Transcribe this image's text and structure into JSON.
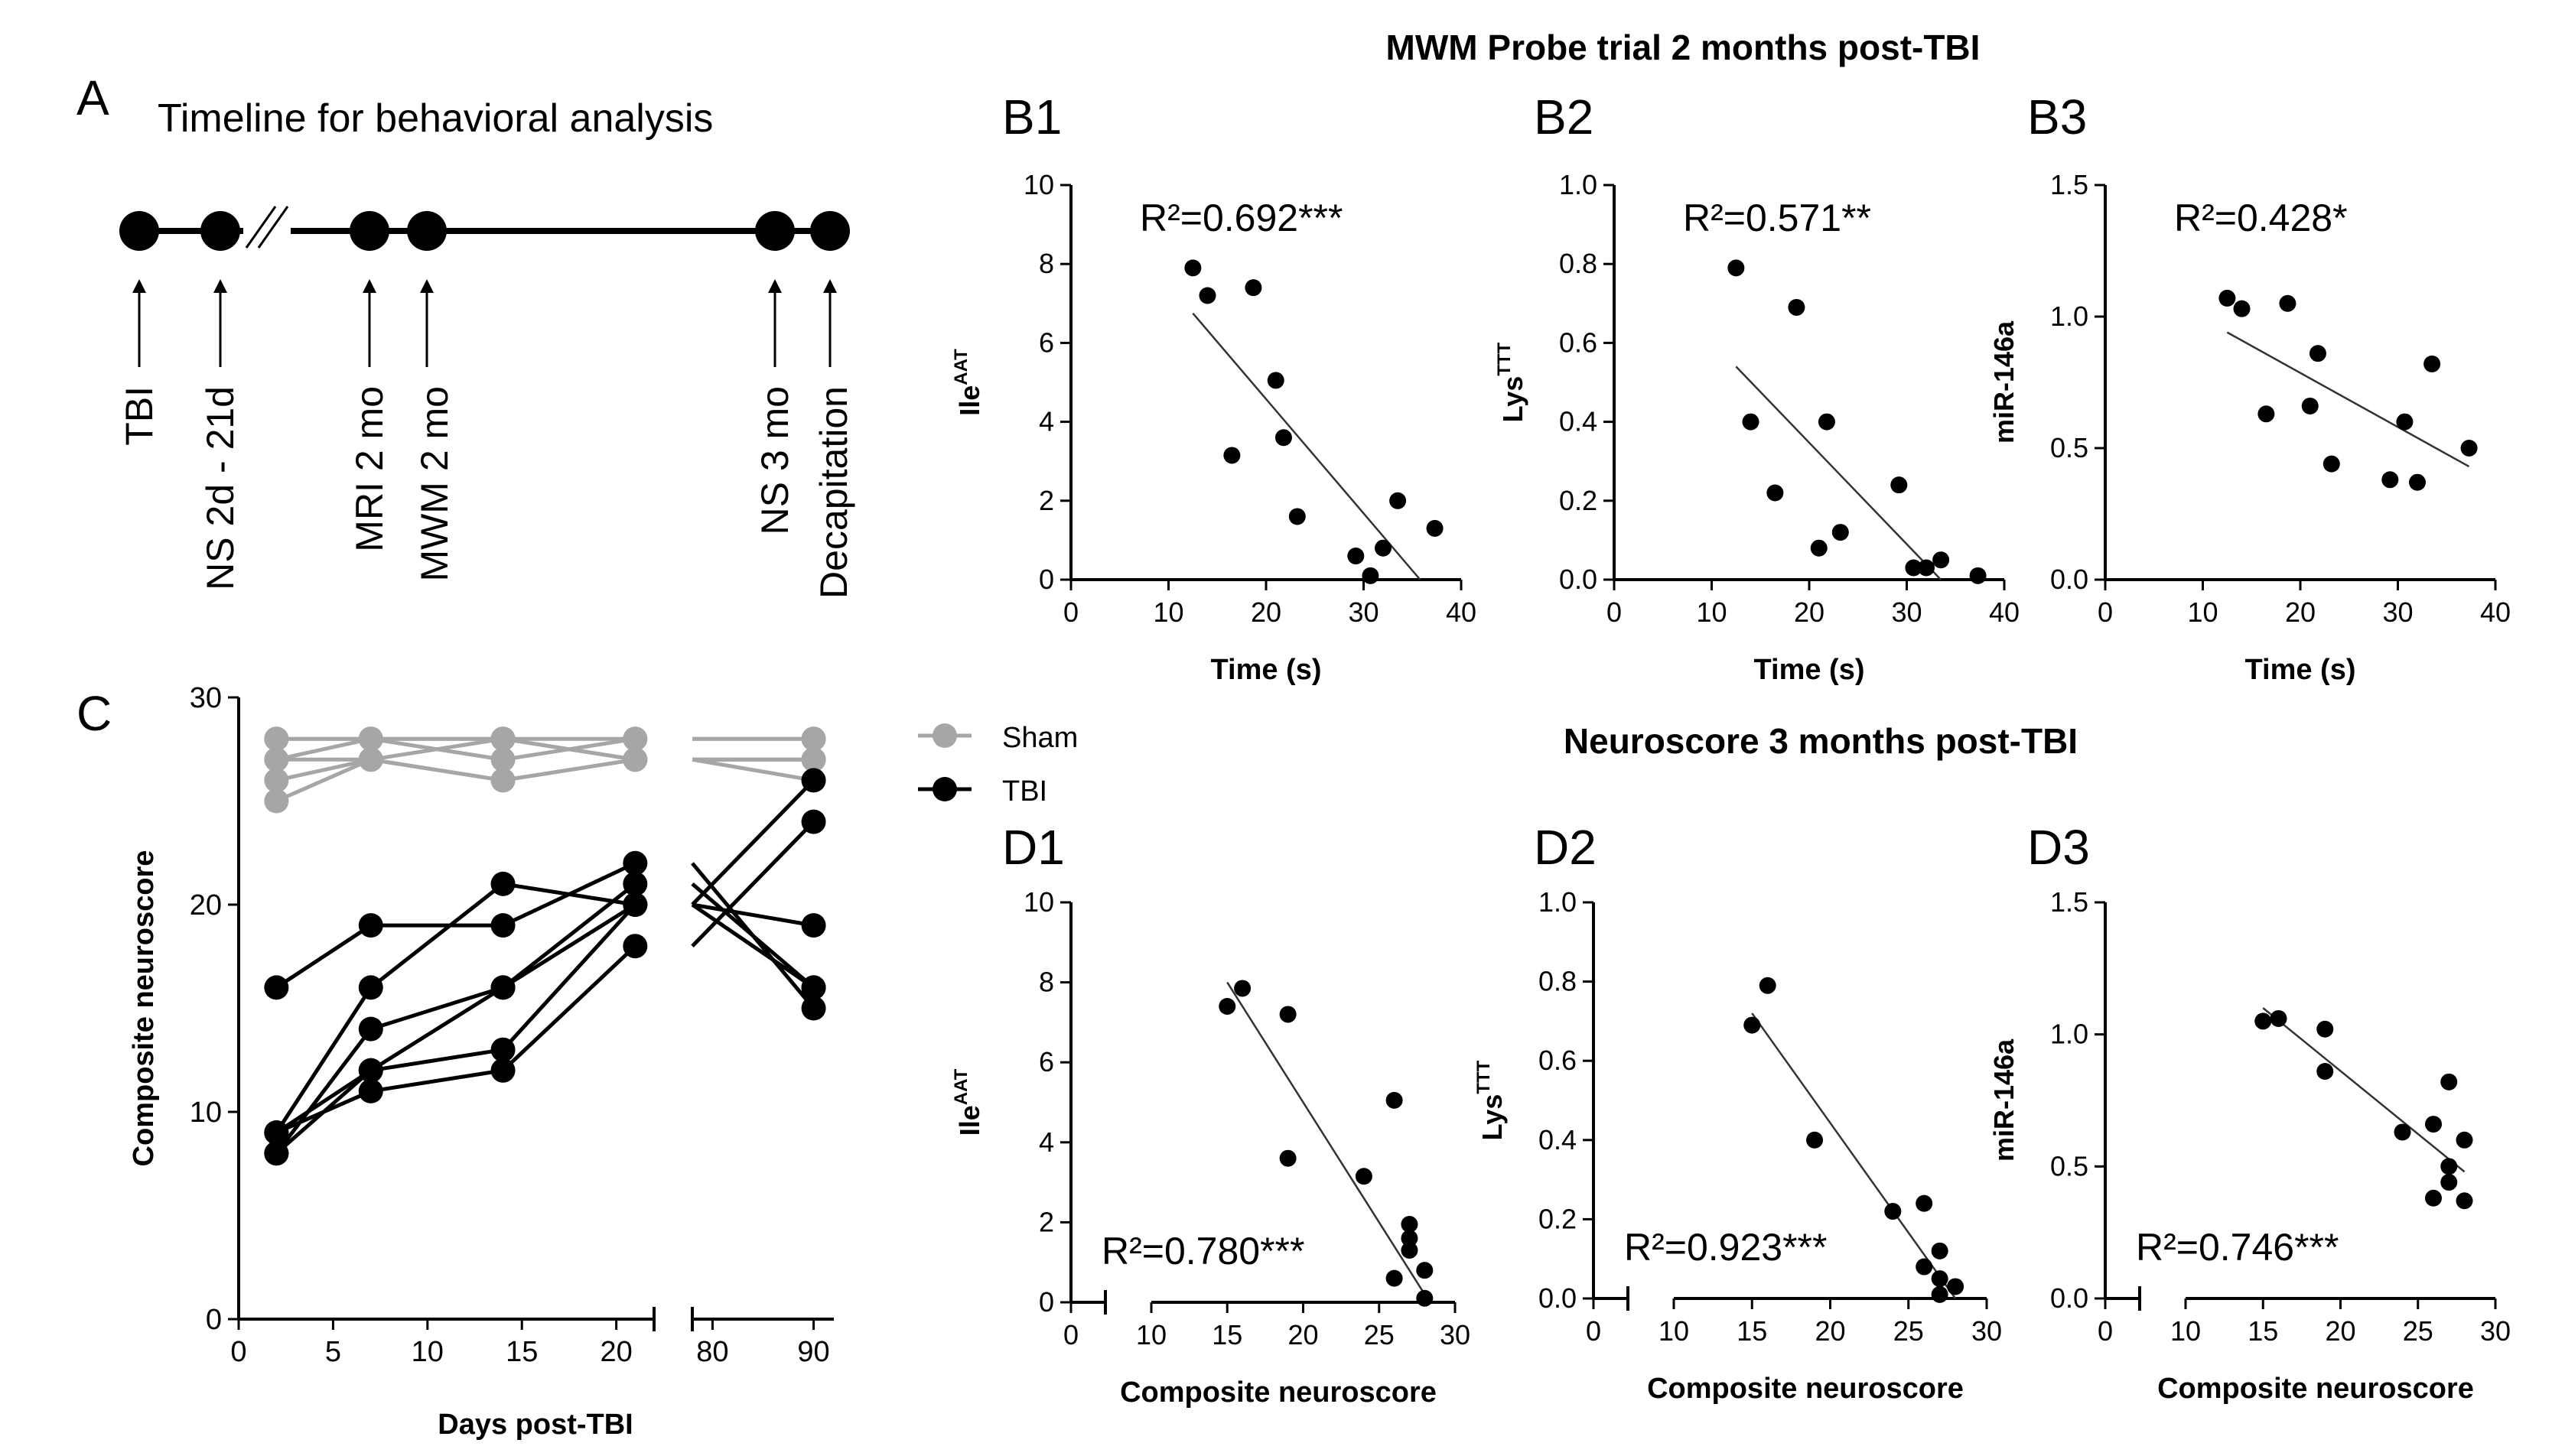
{
  "figure": {
    "panel_labels": {
      "A": "A",
      "B1": "B1",
      "B2": "B2",
      "B3": "B3",
      "C": "C",
      "D1": "D1",
      "D2": "D2",
      "D3": "D3"
    },
    "mwm_title": "MWM Probe trial 2 months post-TBI",
    "neuro_title": "Neuroscore 3 months post-TBI"
  },
  "timeline": {
    "title": "Timeline for behavioral analysis",
    "break_mark": "//",
    "events": [
      "TBI",
      "NS 2d - 21d",
      "MRI 2 mo",
      "MWM 2 mo",
      "NS 3 mo",
      "Decapitation"
    ]
  },
  "chart_data": [
    {
      "id": "C",
      "type": "line",
      "xlabel": "Days post-TBI",
      "ylabel": "Composite neuroscore",
      "xticks": [
        "0",
        "5",
        "10",
        "15",
        "20",
        "80",
        "90"
      ],
      "yticks": [
        "0",
        "10",
        "20",
        "30"
      ],
      "ylim": [
        0,
        30
      ],
      "x": [
        2,
        7,
        14,
        21,
        90
      ],
      "legend": [
        "Sham",
        "TBI"
      ],
      "colors": {
        "Sham": "#a6a6a6",
        "TBI": "#000000"
      },
      "series": [
        {
          "name": "Sham",
          "values": [
            28,
            28,
            28,
            28,
            28
          ]
        },
        {
          "name": "Sham",
          "values": [
            27,
            28,
            27,
            28,
            28
          ]
        },
        {
          "name": "Sham",
          "values": [
            26,
            27,
            26,
            27,
            27
          ]
        },
        {
          "name": "Sham",
          "values": [
            25,
            27,
            26,
            27,
            26
          ]
        },
        {
          "name": "Sham",
          "values": [
            27,
            27,
            28,
            27,
            27
          ]
        },
        {
          "name": "Sham",
          "values": [
            28,
            28,
            28,
            27,
            27
          ]
        },
        {
          "name": "TBI",
          "values": [
            16,
            19,
            19,
            22,
            15
          ]
        },
        {
          "name": "TBI",
          "values": [
            9,
            16,
            21,
            20,
            19
          ]
        },
        {
          "name": "TBI",
          "values": [
            8,
            14,
            16,
            21,
            16
          ]
        },
        {
          "name": "TBI",
          "values": [
            9,
            12,
            16,
            20,
            16
          ]
        },
        {
          "name": "TBI",
          "values": [
            8,
            12,
            13,
            20,
            26
          ]
        },
        {
          "name": "TBI",
          "values": [
            9,
            11,
            12,
            18,
            24
          ]
        }
      ]
    },
    {
      "id": "B1",
      "type": "scatter",
      "xlabel": "Time (s)",
      "ylabel": "Ile",
      "ylabel_sup": "AAT",
      "xlim": [
        0,
        40
      ],
      "ylim": [
        0,
        10
      ],
      "xticks": [
        "0",
        "10",
        "20",
        "30",
        "40"
      ],
      "yticks": [
        "0",
        "2",
        "4",
        "6",
        "8",
        "10"
      ],
      "r2_text": "R²=0.692***",
      "fit": [
        [
          12.5,
          6.75
        ],
        [
          35.8,
          0
        ]
      ],
      "points": [
        [
          12.5,
          7.9
        ],
        [
          14,
          7.2
        ],
        [
          16.5,
          3.15
        ],
        [
          18.7,
          7.4
        ],
        [
          21,
          5.05
        ],
        [
          21.8,
          3.6
        ],
        [
          23.2,
          1.6
        ],
        [
          29.2,
          0.6
        ],
        [
          30.7,
          0.1
        ],
        [
          32,
          0.8
        ],
        [
          33.5,
          2
        ],
        [
          37.3,
          1.3
        ]
      ]
    },
    {
      "id": "B2",
      "type": "scatter",
      "xlabel": "Time (s)",
      "ylabel": "Lys",
      "ylabel_sup": "TTT",
      "xlim": [
        0,
        40
      ],
      "ylim": [
        0,
        1
      ],
      "xticks": [
        "0",
        "10",
        "20",
        "30",
        "40"
      ],
      "yticks": [
        "0.0",
        "0.2",
        "0.4",
        "0.6",
        "0.8",
        "1.0"
      ],
      "r2_text": "R²=0.571**",
      "fit": [
        [
          12.5,
          0.54
        ],
        [
          33.5,
          0
        ]
      ],
      "points": [
        [
          12.5,
          0.79
        ],
        [
          14,
          0.4
        ],
        [
          16.5,
          0.22
        ],
        [
          18.7,
          0.69
        ],
        [
          21,
          0.08
        ],
        [
          21.8,
          0.4
        ],
        [
          23.2,
          0.12
        ],
        [
          29.2,
          0.24
        ],
        [
          30.7,
          0.03
        ],
        [
          32,
          0.03
        ],
        [
          33.5,
          0.05
        ],
        [
          37.3,
          0.01
        ]
      ]
    },
    {
      "id": "B3",
      "type": "scatter",
      "xlabel": "Time (s)",
      "ylabel": "miR-146a",
      "xlim": [
        0,
        40
      ],
      "ylim": [
        0,
        1.5
      ],
      "xticks": [
        "0",
        "10",
        "20",
        "30",
        "40"
      ],
      "yticks": [
        "0.0",
        "0.5",
        "1.0",
        "1.5"
      ],
      "r2_text": "R²=0.428*",
      "fit": [
        [
          12.5,
          0.94
        ],
        [
          37.3,
          0.43
        ]
      ],
      "points": [
        [
          12.5,
          1.07
        ],
        [
          14,
          1.03
        ],
        [
          16.5,
          0.63
        ],
        [
          18.7,
          1.05
        ],
        [
          21,
          0.66
        ],
        [
          21.8,
          0.86
        ],
        [
          23.2,
          0.44
        ],
        [
          29.2,
          0.38
        ],
        [
          30.7,
          0.6
        ],
        [
          32,
          0.37
        ],
        [
          33.5,
          0.82
        ],
        [
          37.3,
          0.5
        ]
      ]
    },
    {
      "id": "D1",
      "type": "scatter",
      "xlabel": "Composite neuroscore",
      "ylabel": "Ile",
      "ylabel_sup": "AAT",
      "ylim": [
        0,
        10
      ],
      "xticks": [
        "0",
        "10",
        "15",
        "20",
        "25",
        "30"
      ],
      "yticks": [
        "0",
        "2",
        "4",
        "6",
        "8",
        "10"
      ],
      "r2_text": "R²=0.780***",
      "fit": [
        [
          15,
          8.0
        ],
        [
          28,
          0.2
        ]
      ],
      "points": [
        [
          15,
          7.4
        ],
        [
          16,
          7.85
        ],
        [
          19,
          7.2
        ],
        [
          19,
          3.6
        ],
        [
          24,
          3.15
        ],
        [
          26,
          5.05
        ],
        [
          26,
          0.6
        ],
        [
          27,
          1.95
        ],
        [
          27,
          1.6
        ],
        [
          27,
          1.3
        ],
        [
          28,
          0.8
        ],
        [
          28,
          0.1
        ]
      ]
    },
    {
      "id": "D2",
      "type": "scatter",
      "xlabel": "Composite neuroscore",
      "ylabel": "Lys",
      "ylabel_sup": "TTT",
      "ylim": [
        0,
        1
      ],
      "xticks": [
        "0",
        "10",
        "15",
        "20",
        "25",
        "30"
      ],
      "yticks": [
        "0.0",
        "0.2",
        "0.4",
        "0.6",
        "0.8",
        "1.0"
      ],
      "r2_text": "R²=0.923***",
      "fit": [
        [
          15,
          0.72
        ],
        [
          28,
          0.0
        ]
      ],
      "points": [
        [
          15,
          0.69
        ],
        [
          16,
          0.79
        ],
        [
          19,
          0.4
        ],
        [
          24,
          0.22
        ],
        [
          26,
          0.24
        ],
        [
          26,
          0.08
        ],
        [
          27,
          0.12
        ],
        [
          27,
          0.05
        ],
        [
          27,
          0.01
        ],
        [
          28,
          0.03
        ]
      ]
    },
    {
      "id": "D3",
      "type": "scatter",
      "xlabel": "Composite neuroscore",
      "ylabel": "miR-146a",
      "ylim": [
        0,
        1.5
      ],
      "xticks": [
        "0",
        "10",
        "15",
        "20",
        "25",
        "30"
      ],
      "yticks": [
        "0.0",
        "0.5",
        "1.0",
        "1.5"
      ],
      "r2_text": "R²=0.746***",
      "fit": [
        [
          15,
          1.1
        ],
        [
          28,
          0.48
        ]
      ],
      "points": [
        [
          15,
          1.05
        ],
        [
          16,
          1.06
        ],
        [
          19,
          1.02
        ],
        [
          19,
          0.86
        ],
        [
          24,
          0.63
        ],
        [
          26,
          0.66
        ],
        [
          26,
          0.38
        ],
        [
          27,
          0.82
        ],
        [
          27,
          0.5
        ],
        [
          27,
          0.44
        ],
        [
          28,
          0.6
        ],
        [
          28,
          0.37
        ]
      ]
    }
  ]
}
